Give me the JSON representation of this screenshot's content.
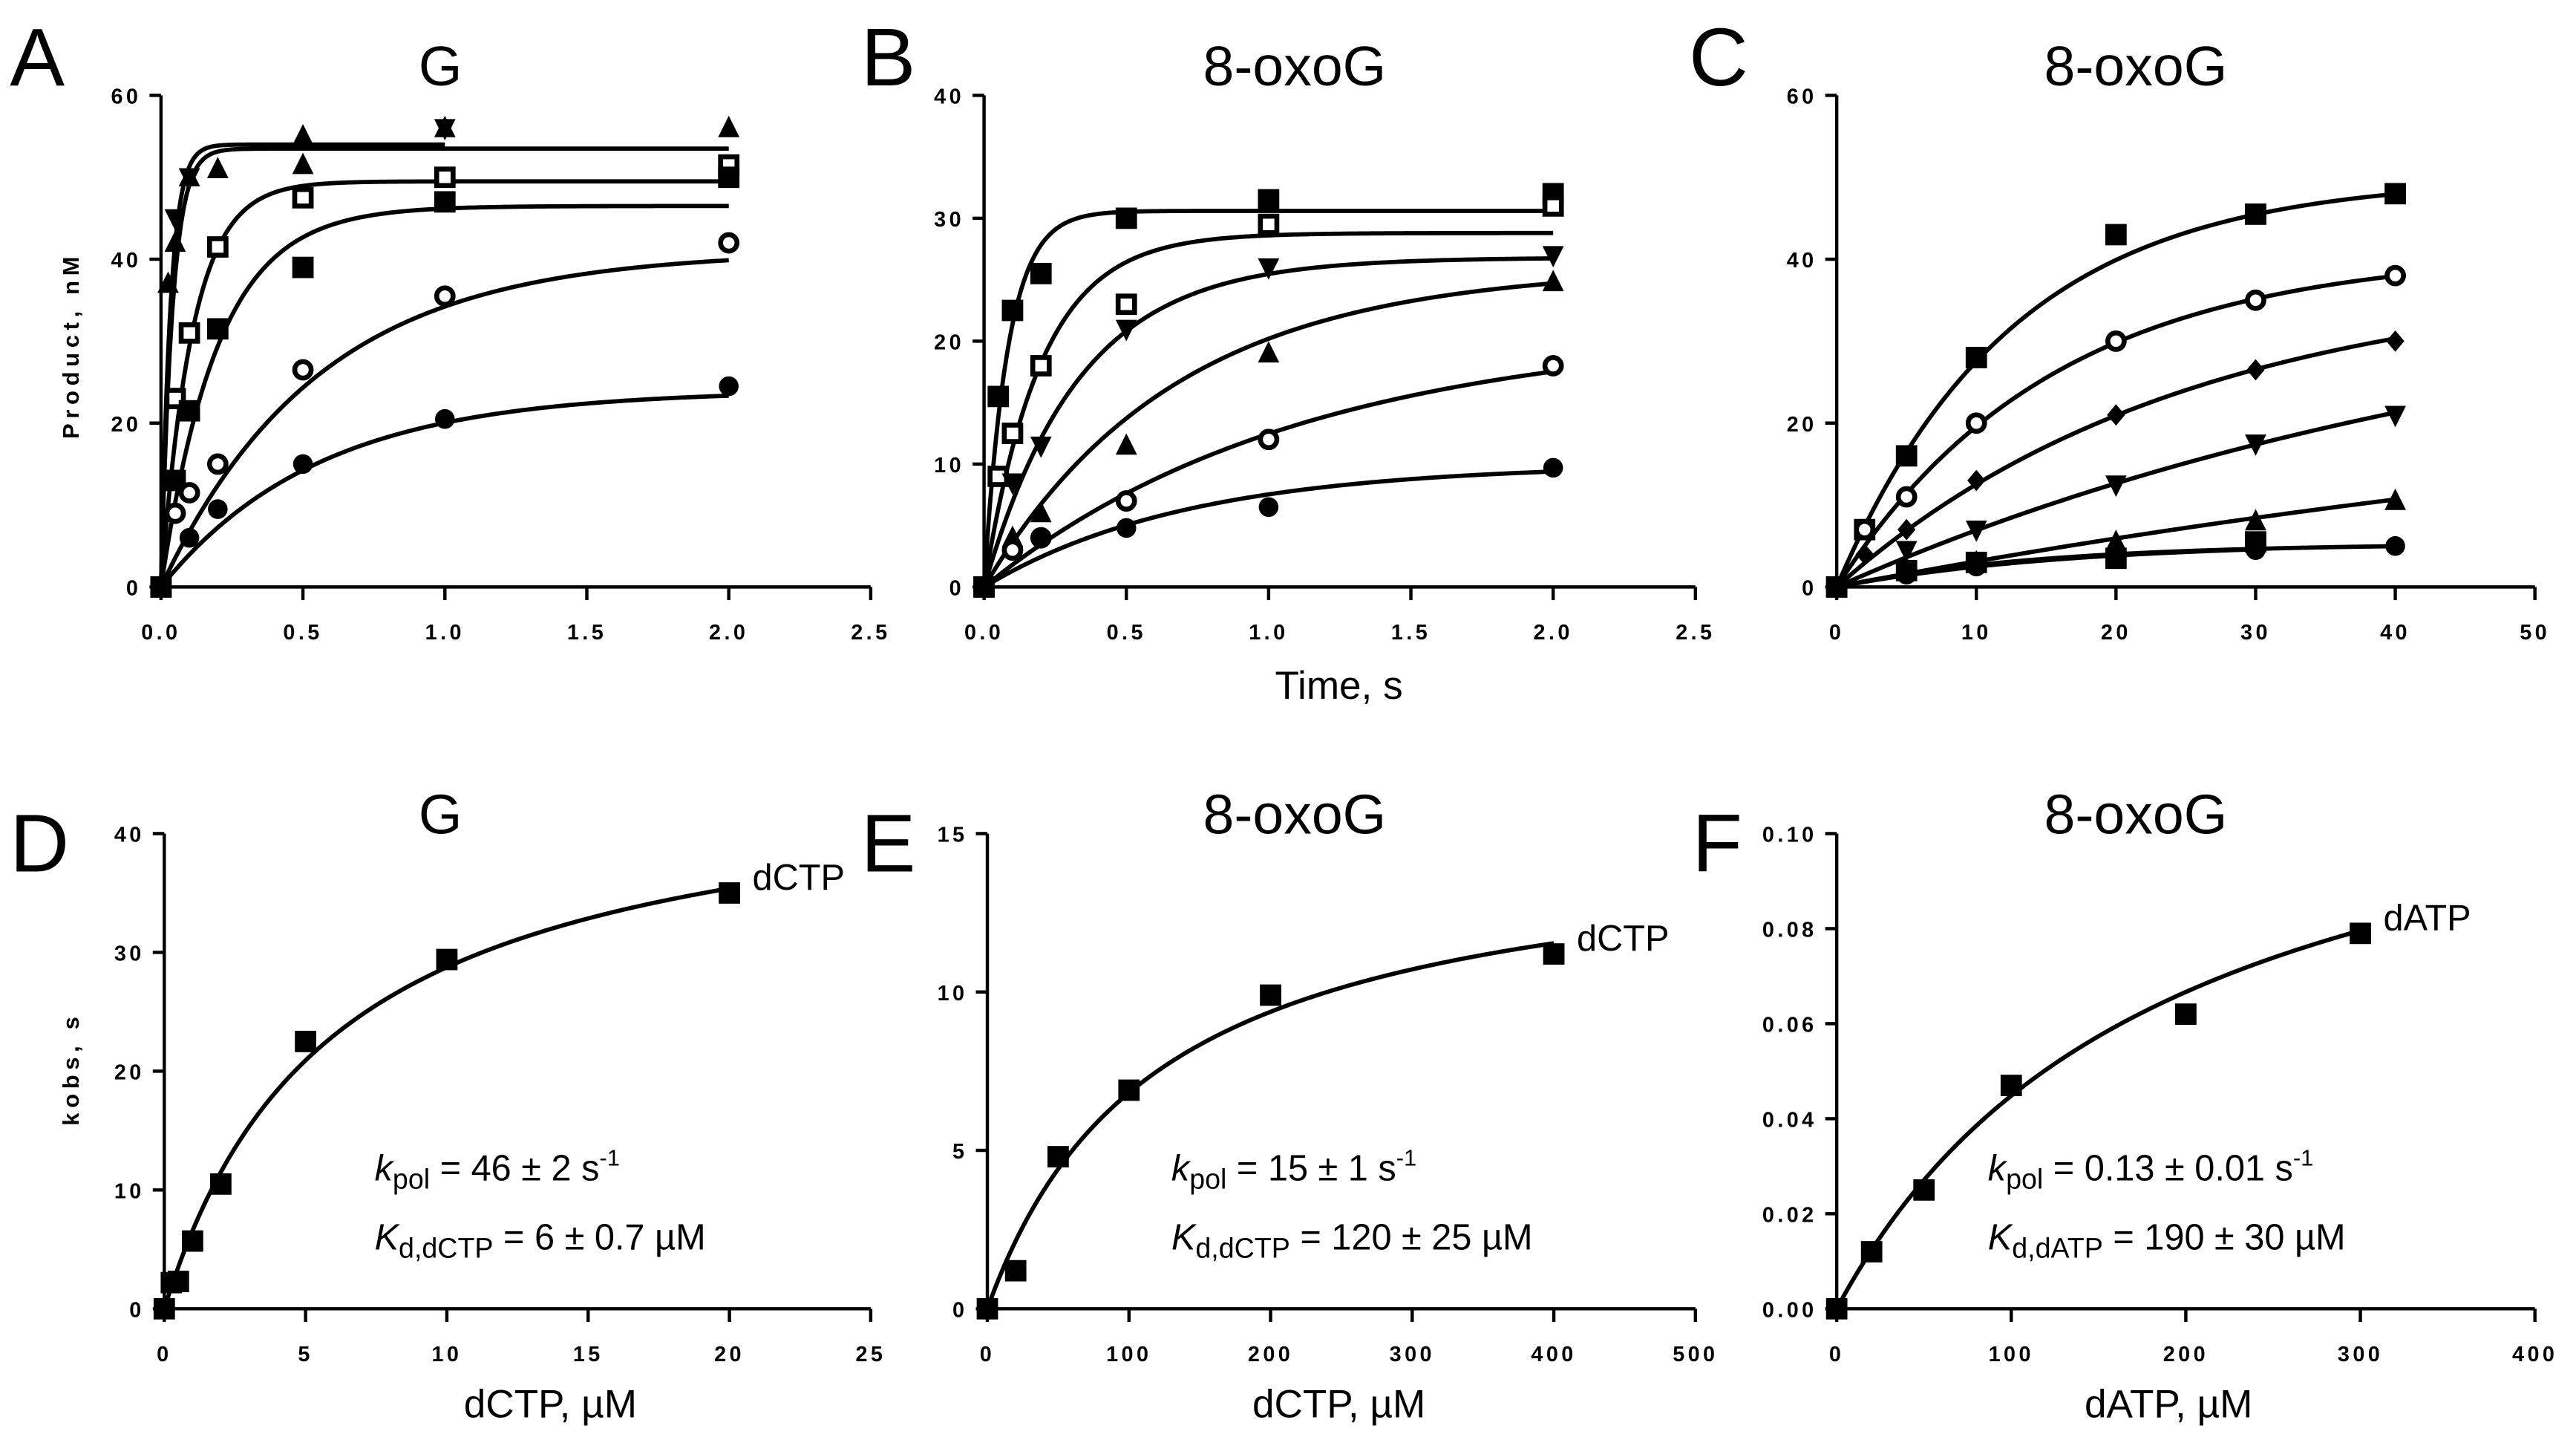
{
  "chart_data": [
    {
      "panel": "A",
      "type": "scatter",
      "title": "G",
      "xlabel": "",
      "ylabel": "Product, nM",
      "xlim": [
        0,
        2.5
      ],
      "ylim": [
        0,
        60
      ],
      "xticks": [
        "0.0",
        "0.5",
        "1.0",
        "1.5",
        "2.0",
        "2.5"
      ],
      "xtick_values": [
        0,
        0.5,
        1,
        1.5,
        2,
        2.5
      ],
      "yticks": [
        "0",
        "20",
        "40",
        "60"
      ],
      "ytick_values": [
        0,
        20,
        40,
        60
      ],
      "series": [
        {
          "marker": "triangle",
          "x": [
            0,
            0.025,
            0.05,
            0.1,
            0.2,
            0.5,
            0.5,
            1,
            2
          ],
          "y": [
            0,
            37,
            42,
            50,
            51,
            55,
            51.5,
            56,
            56
          ],
          "fit": {
            "model": "exp",
            "A": 53.5,
            "k": 25
          }
        },
        {
          "marker": "triangle-down",
          "x": [
            0,
            0.05,
            0.1,
            1
          ],
          "y": [
            0,
            45,
            50,
            56
          ],
          "fit": {
            "model": "exp",
            "A": 54,
            "k": 30
          }
        },
        {
          "marker": "square-open",
          "x": [
            0,
            0.05,
            0.1,
            0.2,
            0.5,
            1,
            2
          ],
          "y": [
            0,
            23,
            31,
            41.5,
            47.5,
            50,
            51.5
          ],
          "fit": {
            "model": "exp",
            "A": 49.5,
            "k": 9
          }
        },
        {
          "marker": "square-filled",
          "x": [
            0,
            0.05,
            0.1,
            0.2,
            0.5,
            1,
            2
          ],
          "y": [
            0,
            13,
            21.5,
            31.5,
            39,
            47,
            50
          ],
          "fit": {
            "model": "exp",
            "A": 46.5,
            "k": 5
          }
        },
        {
          "marker": "circle-open",
          "x": [
            0,
            0.05,
            0.1,
            0.2,
            0.5,
            1,
            2
          ],
          "y": [
            0,
            9,
            11.5,
            15,
            26.5,
            35.5,
            42
          ],
          "fit": {
            "model": "exp",
            "A": 41,
            "k": 1.8
          }
        },
        {
          "marker": "circle-filled",
          "x": [
            0,
            0.1,
            0.2,
            0.5,
            1,
            2
          ],
          "y": [
            0,
            6,
            9.5,
            15,
            20.5,
            24.5
          ],
          "fit": {
            "model": "exp",
            "A": 24,
            "k": 1.8
          }
        }
      ]
    },
    {
      "panel": "B",
      "type": "scatter",
      "title": "8-oxoG",
      "xlabel": "Time, s",
      "ylabel": "",
      "xlim": [
        0,
        2.5
      ],
      "ylim": [
        0,
        40
      ],
      "xticks": [
        "0.0",
        "0.5",
        "1.0",
        "1.5",
        "2.0",
        "2.5"
      ],
      "xtick_values": [
        0,
        0.5,
        1,
        1.5,
        2,
        2.5
      ],
      "yticks": [
        "0",
        "10",
        "20",
        "30",
        "40"
      ],
      "ytick_values": [
        0,
        10,
        20,
        30,
        40
      ],
      "series": [
        {
          "marker": "square-filled",
          "x": [
            0,
            0.05,
            0.1,
            0.2,
            0.5,
            1,
            2
          ],
          "y": [
            0,
            15.5,
            22.5,
            25.5,
            30,
            31.5,
            32
          ],
          "fit": {
            "model": "exp",
            "A": 30.6,
            "k": 12
          }
        },
        {
          "marker": "square-open",
          "x": [
            0,
            0.05,
            0.1,
            0.2,
            0.5,
            1,
            2
          ],
          "y": [
            0,
            9,
            12.5,
            18,
            23,
            29.5,
            31
          ],
          "fit": {
            "model": "exp",
            "A": 28.8,
            "k": 5
          }
        },
        {
          "marker": "triangle-down",
          "x": [
            0,
            0.1,
            0.2,
            0.5,
            1,
            2
          ],
          "y": [
            0,
            8.5,
            11.5,
            21,
            26,
            27
          ],
          "fit": {
            "model": "exp",
            "A": 26.8,
            "k": 3
          }
        },
        {
          "marker": "triangle",
          "x": [
            0,
            0.1,
            0.2,
            0.5,
            1,
            2
          ],
          "y": [
            0,
            4,
            6,
            11.5,
            19,
            24.8
          ],
          "fit": {
            "model": "exp",
            "A": 26,
            "k": 1.5
          }
        },
        {
          "marker": "circle-open",
          "x": [
            0,
            0.1,
            0.2,
            0.5,
            1,
            2
          ],
          "y": [
            0,
            3,
            4,
            7,
            12,
            18
          ],
          "fit": {
            "model": "exp",
            "A": 21,
            "k": 0.9
          }
        },
        {
          "marker": "circle-filled",
          "x": [
            0,
            0.2,
            0.5,
            1,
            2
          ],
          "y": [
            0,
            4,
            4.8,
            6.5,
            9.7
          ],
          "fit": {
            "model": "exp",
            "A": 10,
            "k": 1.4
          }
        }
      ]
    },
    {
      "panel": "C",
      "type": "scatter",
      "title": "8-oxoG",
      "xlabel": "",
      "ylabel": "",
      "xlim": [
        0,
        50
      ],
      "ylim": [
        0,
        60
      ],
      "xticks": [
        "0",
        "10",
        "20",
        "30",
        "40",
        "50"
      ],
      "xtick_values": [
        0,
        10,
        20,
        30,
        40,
        50
      ],
      "yticks": [
        "0",
        "20",
        "40",
        "60"
      ],
      "ytick_values": [
        0,
        20,
        40,
        60
      ],
      "series": [
        {
          "marker": "square-filled",
          "x": [
            0,
            2,
            5,
            10,
            20,
            30,
            40
          ],
          "y": [
            0,
            7,
            16,
            28,
            43,
            45.5,
            48
          ],
          "fit": {
            "model": "exp",
            "A": 50,
            "k": 0.08
          }
        },
        {
          "marker": "circle-open",
          "x": [
            0,
            2,
            5,
            10,
            20,
            30,
            40
          ],
          "y": [
            0,
            7,
            11,
            20,
            30,
            35,
            38
          ],
          "fit": {
            "model": "exp",
            "A": 41,
            "k": 0.065
          }
        },
        {
          "marker": "diamond",
          "x": [
            0,
            2,
            5,
            10,
            20,
            30,
            40
          ],
          "y": [
            0,
            4,
            7,
            13,
            21,
            26.5,
            30
          ],
          "fit": {
            "model": "exp",
            "A": 38,
            "k": 0.04
          }
        },
        {
          "marker": "triangle-down",
          "x": [
            0,
            5,
            10,
            20,
            30,
            40
          ],
          "y": [
            0,
            4.5,
            7,
            12.5,
            17.5,
            21
          ],
          "fit": {
            "model": "exp",
            "A": 40,
            "k": 0.019
          }
        },
        {
          "marker": "triangle",
          "x": [
            0,
            5,
            10,
            20,
            30,
            40
          ],
          "y": [
            0,
            2,
            3,
            5.5,
            8,
            10.5
          ],
          "fit": {
            "model": "exp",
            "A": 30,
            "k": 0.011
          }
        },
        {
          "marker": "square-filled",
          "x": [
            0,
            5,
            10,
            20,
            30
          ],
          "y": [
            0,
            2,
            3,
            3.5,
            5.5
          ],
          "fit": {
            "model": "exp",
            "A": 5.5,
            "k": 0.06
          }
        },
        {
          "marker": "circle-filled",
          "x": [
            0,
            5,
            10,
            20,
            30,
            40
          ],
          "y": [
            0,
            1.5,
            2.5,
            4,
            4.5,
            5
          ],
          "fit": {
            "model": "exp",
            "A": 5.3,
            "k": 0.07
          }
        }
      ]
    },
    {
      "panel": "D",
      "type": "scatter",
      "title": "G",
      "xlabel": "dCTP,  µM",
      "ylabel": "kobs, s",
      "xlim": [
        0,
        25
      ],
      "ylim": [
        0,
        40
      ],
      "xticks": [
        "0",
        "5",
        "10",
        "15",
        "20",
        "25"
      ],
      "xtick_values": [
        0,
        5,
        10,
        15,
        20,
        25
      ],
      "yticks": [
        "0",
        "10",
        "20",
        "30",
        "40"
      ],
      "ytick_values": [
        0,
        10,
        20,
        30,
        40
      ],
      "series": [
        {
          "name": "dCTP",
          "marker": "square-filled",
          "x": [
            0,
            0.25,
            0.5,
            1,
            2,
            5,
            10,
            20
          ],
          "y": [
            0,
            2.2,
            2.3,
            5.7,
            10.5,
            22.5,
            29.4,
            35
          ],
          "fit": {
            "model": "hyperbola",
            "kpol": 46,
            "Kd": 6
          }
        }
      ],
      "annotations": [
        {
          "symbol": "k",
          "sub": "pol",
          "text": " = 46 ± 2 s",
          "sup": "-1"
        },
        {
          "symbol": "K",
          "sub": "d,dCTP",
          "text": " = 6 ± 0.7 µM",
          "sup": ""
        }
      ]
    },
    {
      "panel": "E",
      "type": "scatter",
      "title": "8-oxoG",
      "xlabel": "dCTP,  µM",
      "ylabel": "",
      "xlim": [
        0,
        500
      ],
      "ylim": [
        0,
        15
      ],
      "xticks": [
        "0",
        "100",
        "200",
        "300",
        "400",
        "500"
      ],
      "xtick_values": [
        0,
        100,
        200,
        300,
        400,
        500
      ],
      "yticks": [
        "0",
        "5",
        "10",
        "15"
      ],
      "ytick_values": [
        0,
        5,
        10,
        15
      ],
      "series": [
        {
          "name": "dCTP",
          "marker": "square-filled",
          "x": [
            0,
            20,
            50,
            100,
            200,
            400
          ],
          "y": [
            0,
            1.2,
            4.8,
            6.9,
            9.9,
            11.2
          ],
          "fit": {
            "model": "hyperbola",
            "kpol": 15,
            "Kd": 120
          }
        }
      ],
      "annotations": [
        {
          "symbol": "k",
          "sub": "pol",
          "text": " = 15 ± 1 s",
          "sup": "-1"
        },
        {
          "symbol": "K",
          "sub": "d,dCTP",
          "text": " = 120 ± 25 µM",
          "sup": ""
        }
      ]
    },
    {
      "panel": "F",
      "type": "scatter",
      "title": "8-oxoG",
      "xlabel": "dATP,  µM",
      "ylabel": "",
      "xlim": [
        0,
        400
      ],
      "ylim": [
        0,
        0.1
      ],
      "xticks": [
        "0",
        "100",
        "200",
        "300",
        "400"
      ],
      "xtick_values": [
        0,
        100,
        200,
        300,
        400
      ],
      "yticks": [
        "0.00",
        "0.02",
        "0.04",
        "0.06",
        "0.08",
        "0.10"
      ],
      "ytick_values": [
        0,
        0.02,
        0.04,
        0.06,
        0.08,
        0.1
      ],
      "series": [
        {
          "name": "dATP",
          "marker": "square-filled",
          "x": [
            0,
            20,
            50,
            100,
            200,
            300
          ],
          "y": [
            0,
            0.012,
            0.025,
            0.047,
            0.062,
            0.079
          ],
          "fit": {
            "model": "hyperbola",
            "kpol": 0.13,
            "Kd": 190
          }
        }
      ],
      "annotations": [
        {
          "symbol": "k",
          "sub": "pol",
          "text": " = 0.13 ± 0.01 s",
          "sup": "-1"
        },
        {
          "symbol": "K",
          "sub": "d,dATP",
          "text": " = 190 ± 30 µM",
          "sup": ""
        }
      ]
    }
  ],
  "colors": {
    "ink": "#000000",
    "background": "#ffffff"
  }
}
